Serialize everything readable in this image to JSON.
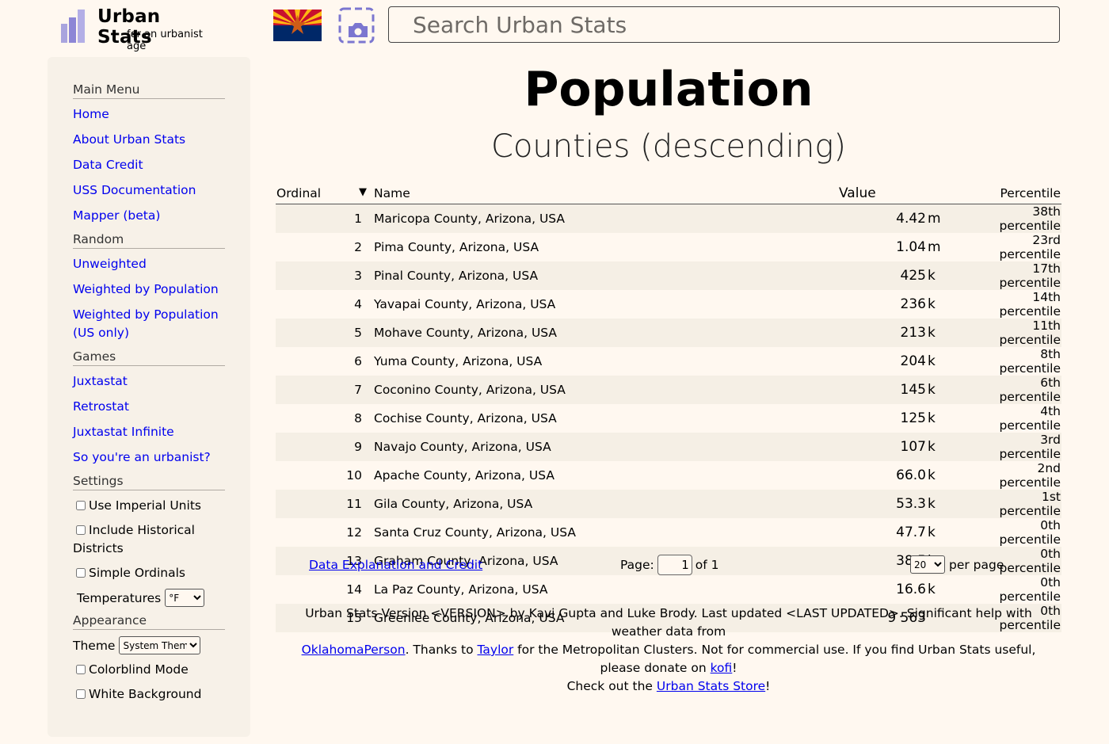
{
  "header": {
    "logo_title": "Urban Stats",
    "logo_tagline": "for an urbanist age",
    "search_placeholder": "Search Urban Stats"
  },
  "sidebar": {
    "main_menu_heading": "Main Menu",
    "main_menu": [
      "Home",
      "About Urban Stats",
      "Data Credit",
      "USS Documentation",
      "Mapper (beta)"
    ],
    "random_heading": "Random",
    "random": [
      "Unweighted",
      "Weighted by Population",
      "Weighted by Population (US only)"
    ],
    "games_heading": "Games",
    "games": [
      "Juxtastat",
      "Retrostat",
      "Juxtastat Infinite",
      "So you're an urbanist?"
    ],
    "settings_heading": "Settings",
    "use_imperial": "Use Imperial Units",
    "include_historical": "Include Historical Districts",
    "simple_ordinals": "Simple Ordinals",
    "temperatures_label": "Temperatures",
    "temperatures_value": "°F",
    "appearance_heading": "Appearance",
    "theme_label": "Theme",
    "theme_value": "System Theme",
    "colorblind": "Colorblind Mode",
    "white_background": "White Background"
  },
  "main": {
    "title": "Population",
    "subtitle": "Counties (descending)",
    "columns": {
      "ordinal": "Ordinal",
      "sort_arrow": "▼",
      "name": "Name",
      "value": "Value",
      "percentile": "Percentile"
    },
    "rows": [
      {
        "ord": "1",
        "name": "Maricopa County, Arizona, USA",
        "value": "4.42",
        "unit": "m",
        "pct": "38th percentile"
      },
      {
        "ord": "2",
        "name": "Pima County, Arizona, USA",
        "value": "1.04",
        "unit": "m",
        "pct": "23rd percentile"
      },
      {
        "ord": "3",
        "name": "Pinal County, Arizona, USA",
        "value": "425",
        "unit": "k",
        "pct": "17th percentile"
      },
      {
        "ord": "4",
        "name": "Yavapai County, Arizona, USA",
        "value": "236",
        "unit": "k",
        "pct": "14th percentile"
      },
      {
        "ord": "5",
        "name": "Mohave County, Arizona, USA",
        "value": "213",
        "unit": "k",
        "pct": "11th percentile"
      },
      {
        "ord": "6",
        "name": "Yuma County, Arizona, USA",
        "value": "204",
        "unit": "k",
        "pct": "8th percentile"
      },
      {
        "ord": "7",
        "name": "Coconino County, Arizona, USA",
        "value": "145",
        "unit": "k",
        "pct": "6th percentile"
      },
      {
        "ord": "8",
        "name": "Cochise County, Arizona, USA",
        "value": "125",
        "unit": "k",
        "pct": "4th percentile"
      },
      {
        "ord": "9",
        "name": "Navajo County, Arizona, USA",
        "value": "107",
        "unit": "k",
        "pct": "3rd percentile"
      },
      {
        "ord": "10",
        "name": "Apache County, Arizona, USA",
        "value": "66.0",
        "unit": "k",
        "pct": "2nd percentile"
      },
      {
        "ord": "11",
        "name": "Gila County, Arizona, USA",
        "value": "53.3",
        "unit": "k",
        "pct": "1st percentile"
      },
      {
        "ord": "12",
        "name": "Santa Cruz County, Arizona, USA",
        "value": "47.7",
        "unit": "k",
        "pct": "0th percentile"
      },
      {
        "ord": "13",
        "name": "Graham County, Arizona, USA",
        "value": "38.5",
        "unit": "k",
        "pct": "0th percentile"
      },
      {
        "ord": "14",
        "name": "La Paz County, Arizona, USA",
        "value": "16.6",
        "unit": "k",
        "pct": "0th percentile"
      },
      {
        "ord": "15",
        "name": "Greenlee County, Arizona, USA",
        "value": "9 563",
        "unit": "",
        "pct": "0th percentile"
      }
    ]
  },
  "pager": {
    "credit_link": "Data Explanation and Credit",
    "page_label": "Page:",
    "page_value": "1",
    "of_text": "of 1",
    "per_page_value": "20",
    "per_page_label": "per page"
  },
  "footer": {
    "line1": "Urban Stats Version <VERSION> by Kavi Gupta and Luke Brody. Last updated <LAST UPDATED>. Significant help with weather data from",
    "link_oklahoma": "OklahomaPerson",
    "text_thanks": ". Thanks to ",
    "link_taylor": "Taylor",
    "text_middle": " for the Metropolitan Clusters. Not for commercial use. If you find Urban Stats useful, please donate on ",
    "link_kofi": "kofi",
    "text_bang": "!",
    "text_checkout": "Check out the ",
    "link_store": "Urban Stats Store",
    "text_end": "!"
  },
  "colors": {
    "background": "#fff8f0",
    "sidebar": "#f7f1e8",
    "link": "#0000ee",
    "row_alt": "#f5efe5"
  }
}
